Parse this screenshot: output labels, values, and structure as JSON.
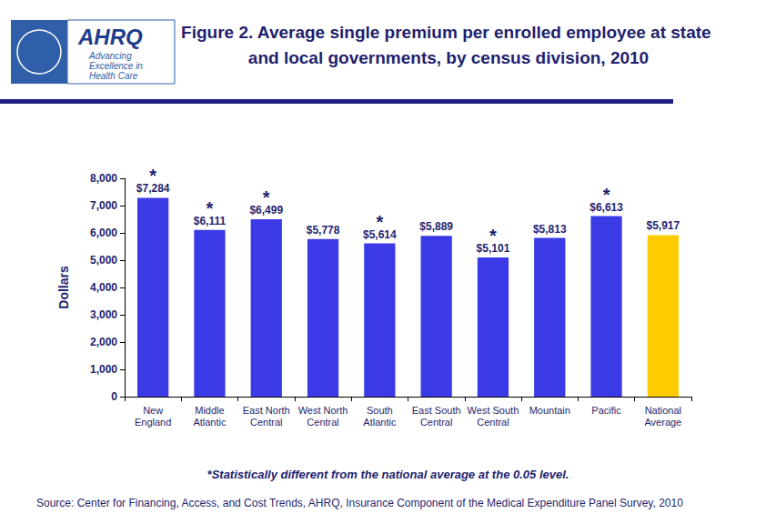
{
  "chart_data": {
    "type": "bar",
    "title": "Figure 2. Average single premium per enrolled employee at state and local governments, by census division, 2010",
    "y_label": "Dollars",
    "categories": [
      "New England",
      "Middle Atlantic",
      "East North Central",
      "West North Central",
      "South Atlantic",
      "East South Central",
      "West South Central",
      "Mountain",
      "Pacific",
      "National Average"
    ],
    "values": [
      7284,
      6111,
      6499,
      5778,
      5614,
      5889,
      5101,
      5813,
      6613,
      5917
    ],
    "value_labels": [
      "$7,284",
      "$6,111",
      "$6,499",
      "$5,778",
      "$5,614",
      "$5,889",
      "$5,101",
      "$5,813",
      "$6,613",
      "$5,917"
    ],
    "markers": [
      "*",
      "*",
      "*",
      null,
      "*",
      null,
      "*",
      null,
      "*",
      null
    ],
    "colors": [
      "#3A3AE6",
      "#3A3AE6",
      "#3A3AE6",
      "#3A3AE6",
      "#3A3AE6",
      "#3A3AE6",
      "#3A3AE6",
      "#3A3AE6",
      "#3A3AE6",
      "#FFCC00"
    ],
    "data_labels": true,
    "grid": false,
    "ylim": [
      0,
      8000
    ],
    "yticks": [
      0,
      {
        "value": 1000,
        "label": "1,000"
      },
      {
        "value": 2000,
        "label": "2,000"
      },
      {
        "value": 3000,
        "label": "3,000"
      },
      {
        "value": 4000,
        "label": "4,000"
      },
      {
        "value": 5000,
        "label": "5,000"
      },
      {
        "value": 6000,
        "label": "6,000"
      },
      {
        "value": 7000,
        "label": "7,000"
      },
      {
        "value": 8000,
        "label": "8,000"
      }
    ],
    "annotations": {
      "footnote": "*Statistically different from the national average at the 0.05 level.",
      "source": "Source: Center for Financing, Access, and Cost Trends, AHRQ, Insurance Component of the Medical Expenditure Panel Survey, 2010",
      "logo": [
        "AHRQ",
        "Advancing Excellence in Health Care"
      ]
    }
  }
}
